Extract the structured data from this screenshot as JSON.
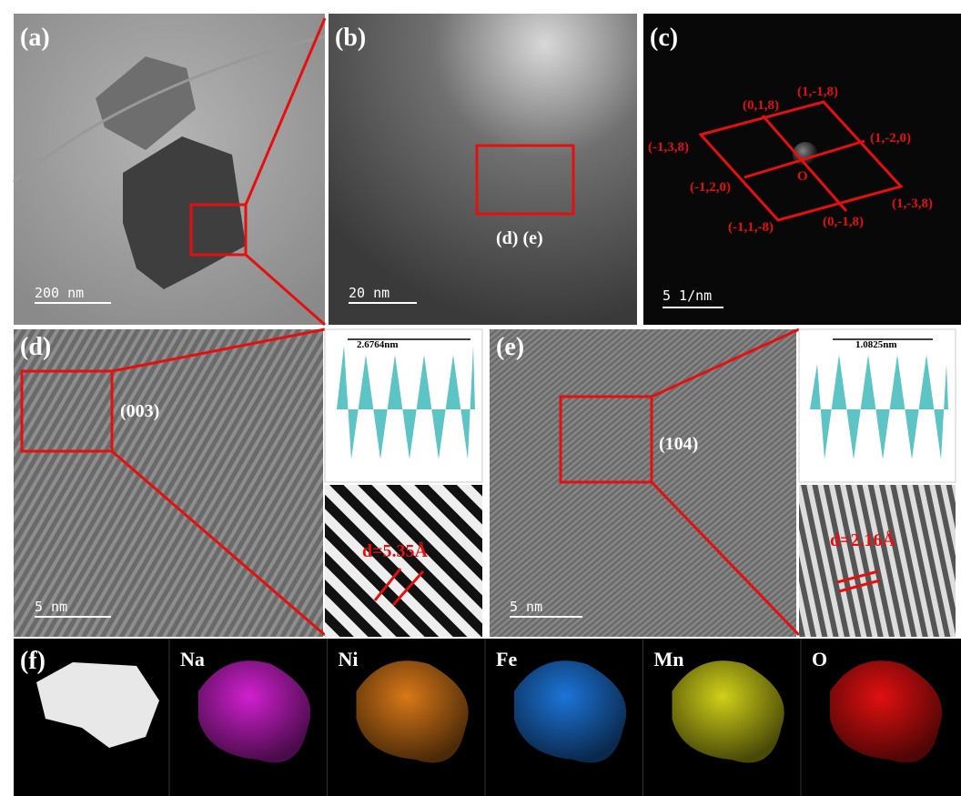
{
  "panels": {
    "a": {
      "label": "(a)",
      "scale": "200 nm"
    },
    "b": {
      "label": "(b)",
      "scale": "20 nm",
      "annotation": "(d) (e)"
    },
    "c": {
      "label": "(c)",
      "scale": "5 1/nm",
      "origin": "O",
      "spots": [
        "(0,1,8)",
        "(1,-1,8)",
        "(-1,3,8)",
        "(1,-2,0)",
        "(-1,2,0)",
        "(1,-3,8)",
        "(-1,1,-8)",
        "(0,-1,8)"
      ]
    },
    "d": {
      "label": "(d)",
      "plane": "(003)",
      "scale": "5 nm",
      "profile": "2.6764nm",
      "spacing": "d=5.35Å"
    },
    "e": {
      "label": "(e)",
      "plane": "(104)",
      "scale": "5 nm",
      "profile": "1.0825nm",
      "spacing": "d=2.16Å"
    },
    "f": {
      "label": "(f)",
      "elements": [
        "Na",
        "Ni",
        "Fe",
        "Mn",
        "O"
      ]
    }
  }
}
